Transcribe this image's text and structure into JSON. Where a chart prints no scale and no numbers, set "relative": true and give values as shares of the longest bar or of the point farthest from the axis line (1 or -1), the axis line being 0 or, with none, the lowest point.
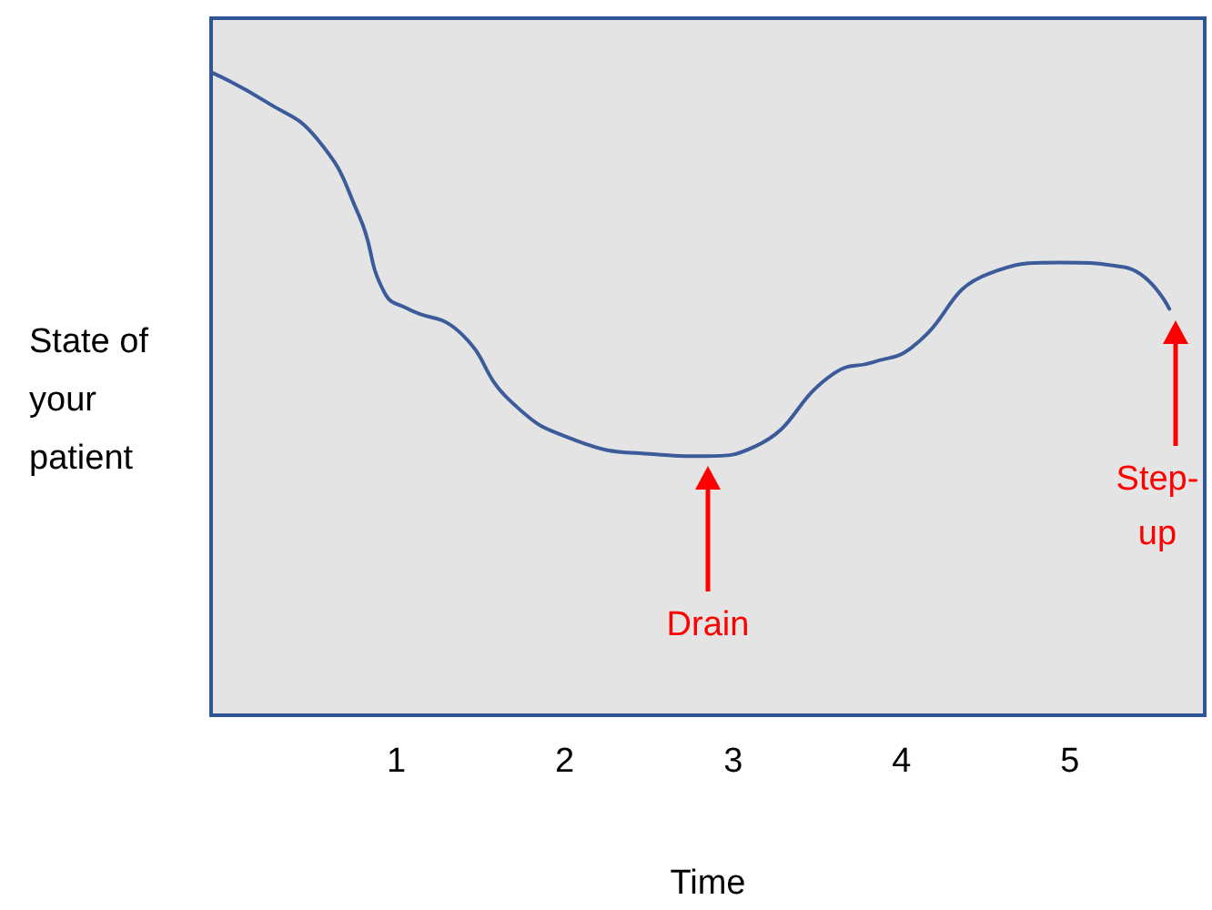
{
  "chart_data": {
    "type": "line",
    "xlabel": "Time",
    "ylabel": "State of your patient",
    "relative": true,
    "color": "#3b5b9b",
    "marker": "none",
    "grid": false,
    "x": [
      -0.1,
      0.22,
      0.53,
      0.78,
      0.93,
      1.07,
      1.37,
      1.68,
      2.06,
      2.52,
      2.83,
      3.13,
      3.6,
      3.83,
      4.06,
      4.52,
      4.94,
      5.32,
      5.59
    ],
    "values": [
      1,
      0.955,
      0.896,
      0.776,
      0.657,
      0.632,
      0.597,
      0.488,
      0.428,
      0.406,
      0.403,
      0.418,
      0.532,
      0.549,
      0.572,
      0.687,
      0.704,
      0.697,
      0.632
    ],
    "xlim": [
      -0.1,
      5.8
    ],
    "xticks": [
      1,
      2,
      3,
      4,
      5
    ],
    "annotations": [
      "Drain",
      "Step-up"
    ]
  }
}
